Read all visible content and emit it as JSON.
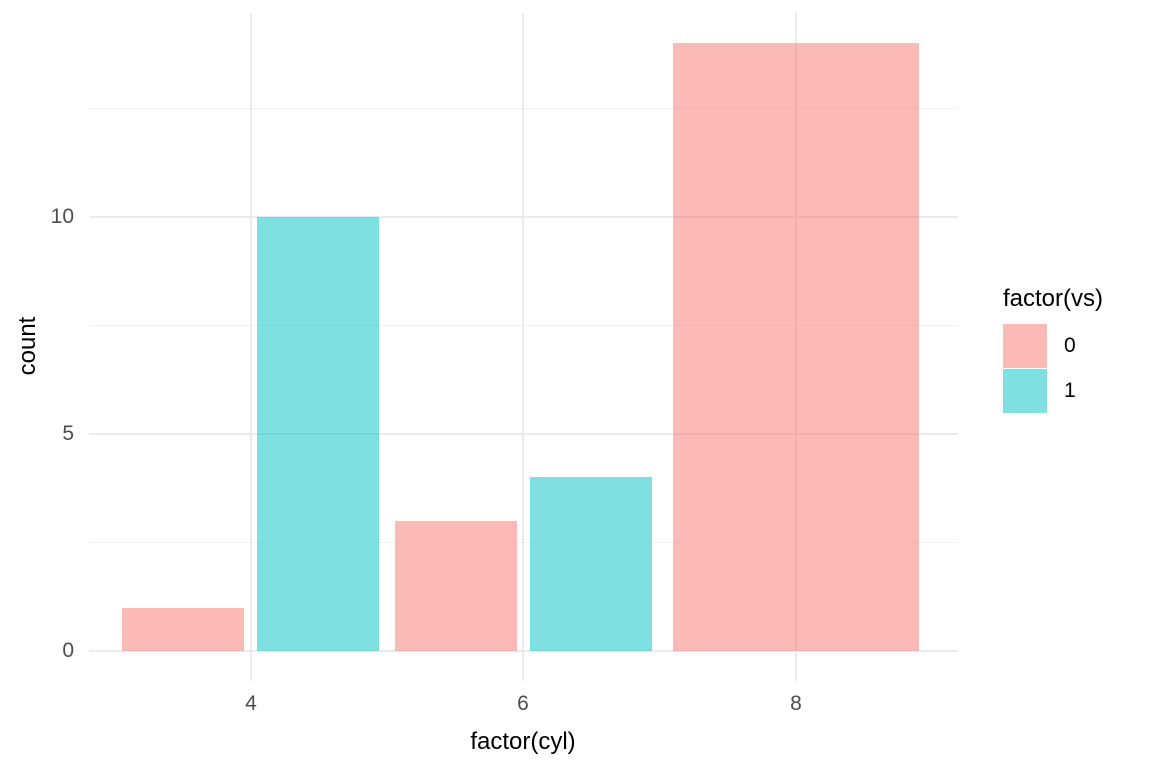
{
  "chart_data": {
    "type": "bar",
    "bar_position": "dodge",
    "title": "",
    "xlabel": "factor(cyl)",
    "ylabel": "count",
    "categories": [
      "4",
      "6",
      "8"
    ],
    "series": [
      {
        "name": "0",
        "color_hex": "#F8766D",
        "alpha": 0.5,
        "fill_rgba": "rgba(248,118,109,0.5)",
        "values": [
          1,
          3,
          14
        ]
      },
      {
        "name": "1",
        "color_hex": "#00BFC4",
        "alpha": 0.5,
        "fill_rgba": "rgba(0,191,196,0.5)",
        "values": [
          10,
          4,
          null
        ]
      }
    ],
    "y_axis": {
      "major_ticks": [
        "0",
        "5",
        "10"
      ],
      "major_tick_values": [
        0,
        5,
        10
      ],
      "minor_gridline_values": [
        2.5,
        7.5,
        12.5
      ],
      "range": [
        -0.7,
        14.7
      ]
    },
    "x_axis": {
      "tick_labels": [
        "4",
        "6",
        "8"
      ]
    },
    "legend": {
      "title": "factor(vs)",
      "position": "right",
      "entries": [
        {
          "label": "0"
        },
        {
          "label": "1"
        }
      ]
    },
    "grid": true,
    "theme": {
      "name": "minimal",
      "background": "#FFFFFF",
      "grid_major_color": "#EBEBEB",
      "grid_minor_color": "#F2F2F2",
      "axis_text_color": "#4D4D4D",
      "axis_title_color": "#000000",
      "legend_text_color": "#000000"
    }
  }
}
